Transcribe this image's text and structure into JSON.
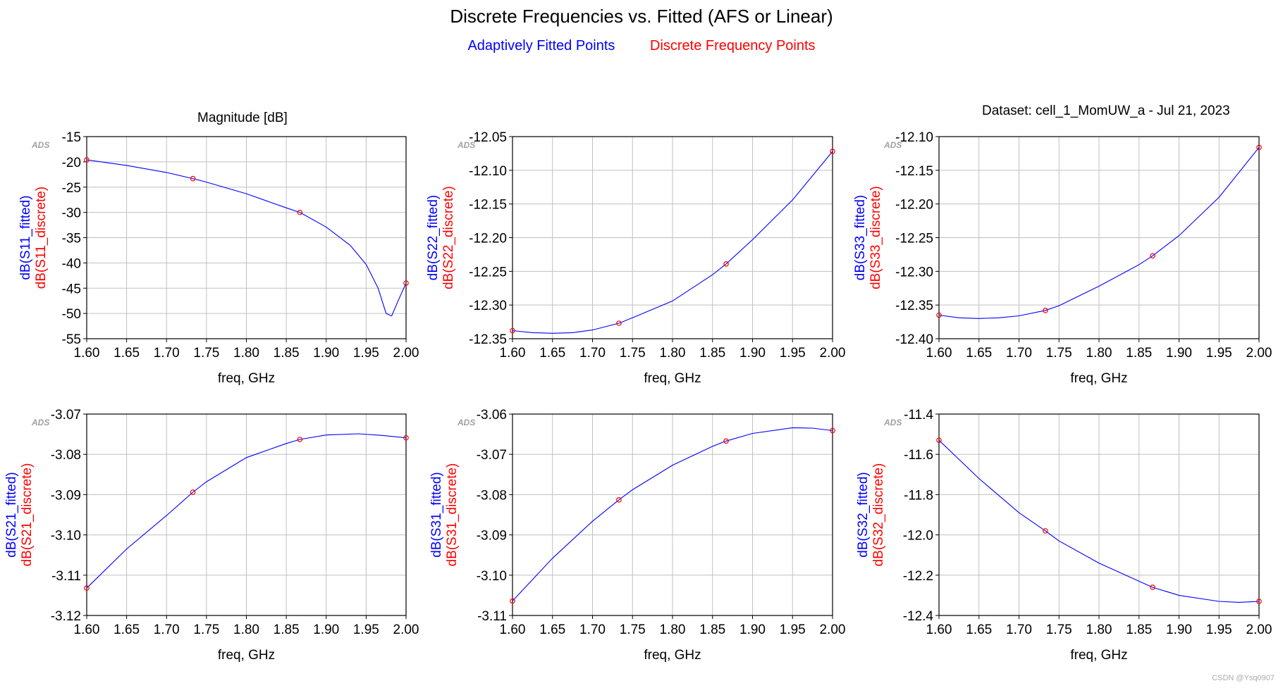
{
  "title": "Discrete Frequencies vs. Fitted (AFS or Linear)",
  "legend": {
    "fitted": "Adaptively Fitted Points",
    "discrete": "Discrete Frequency Points"
  },
  "colors": {
    "fitted": "#0000ff",
    "discrete": "#ff0000",
    "grid": "#c0c0c0",
    "ads_mark": "#a0a0a0"
  },
  "panel_title": "Magnitude [dB]",
  "dataset_label": "Dataset: cell_1_MomUW_a - Jul 21, 2023",
  "watermark": "CSDN @Ysq0907",
  "chart_data": [
    {
      "type": "line",
      "ylabel_fitted": "dB(S11_fitted)",
      "ylabel_discrete": "dB(S11_discrete)",
      "xlabel": "freq, GHz",
      "xlim": [
        1.6,
        2.0
      ],
      "xticks": [
        "1.60",
        "1.65",
        "1.70",
        "1.75",
        "1.80",
        "1.85",
        "1.90",
        "1.95",
        "2.00"
      ],
      "ylim": [
        -55,
        -15
      ],
      "yticks": [
        "-15",
        "-20",
        "-25",
        "-30",
        "-35",
        "-40",
        "-45",
        "-50",
        "-55"
      ],
      "fitted": {
        "x": [
          1.6,
          1.65,
          1.7,
          1.733,
          1.75,
          1.8,
          1.85,
          1.867,
          1.9,
          1.93,
          1.95,
          1.965,
          1.975,
          1.982,
          1.99,
          2.0
        ],
        "y": [
          -19.6,
          -20.7,
          -22.1,
          -23.3,
          -24.0,
          -26.3,
          -29.1,
          -30.0,
          -32.9,
          -36.5,
          -40.3,
          -45.0,
          -50.0,
          -50.5,
          -47.5,
          -44.0
        ]
      },
      "discrete": {
        "x": [
          1.6,
          1.733,
          1.867,
          2.0
        ],
        "y": [
          -19.6,
          -23.3,
          -30.0,
          -44.0
        ]
      },
      "grid": true,
      "ads_mark": "ADS"
    },
    {
      "type": "line",
      "ylabel_fitted": "dB(S22_fitted)",
      "ylabel_discrete": "dB(S22_discrete)",
      "xlabel": "freq, GHz",
      "xlim": [
        1.6,
        2.0
      ],
      "xticks": [
        "1.60",
        "1.65",
        "1.70",
        "1.75",
        "1.80",
        "1.85",
        "1.90",
        "1.95",
        "2.00"
      ],
      "ylim": [
        -12.35,
        -12.05
      ],
      "yticks": [
        "-12.05",
        "-12.10",
        "-12.15",
        "-12.20",
        "-12.25",
        "-12.30",
        "-12.35"
      ],
      "fitted": {
        "x": [
          1.6,
          1.625,
          1.65,
          1.675,
          1.7,
          1.733,
          1.75,
          1.8,
          1.85,
          1.867,
          1.9,
          1.95,
          2.0
        ],
        "y": [
          -12.338,
          -12.341,
          -12.342,
          -12.341,
          -12.337,
          -12.327,
          -12.319,
          -12.294,
          -12.255,
          -12.239,
          -12.203,
          -12.144,
          -12.072
        ]
      },
      "discrete": {
        "x": [
          1.6,
          1.733,
          1.867,
          2.0
        ],
        "y": [
          -12.338,
          -12.327,
          -12.239,
          -12.072
        ]
      },
      "grid": true,
      "ads_mark": "ADS"
    },
    {
      "type": "line",
      "ylabel_fitted": "dB(S33_fitted)",
      "ylabel_discrete": "dB(S33_discrete)",
      "xlabel": "freq, GHz",
      "xlim": [
        1.6,
        2.0
      ],
      "xticks": [
        "1.60",
        "1.65",
        "1.70",
        "1.75",
        "1.80",
        "1.85",
        "1.90",
        "1.95",
        "2.00"
      ],
      "ylim": [
        -12.4,
        -12.1
      ],
      "yticks": [
        "-12.10",
        "-12.15",
        "-12.20",
        "-12.25",
        "-12.30",
        "-12.35",
        "-12.40"
      ],
      "fitted": {
        "x": [
          1.6,
          1.625,
          1.65,
          1.675,
          1.7,
          1.733,
          1.75,
          1.8,
          1.85,
          1.867,
          1.9,
          1.95,
          2.0
        ],
        "y": [
          -12.365,
          -12.369,
          -12.37,
          -12.369,
          -12.366,
          -12.358,
          -12.351,
          -12.322,
          -12.29,
          -12.277,
          -12.247,
          -12.19,
          -12.116
        ]
      },
      "discrete": {
        "x": [
          1.6,
          1.733,
          1.867,
          2.0
        ],
        "y": [
          -12.365,
          -12.358,
          -12.277,
          -12.116
        ]
      },
      "grid": true,
      "ads_mark": "ADS"
    },
    {
      "type": "line",
      "ylabel_fitted": "dB(S21_fitted)",
      "ylabel_discrete": "dB(S21_discrete)",
      "xlabel": "freq, GHz",
      "xlim": [
        1.6,
        2.0
      ],
      "xticks": [
        "1.60",
        "1.65",
        "1.70",
        "1.75",
        "1.80",
        "1.85",
        "1.90",
        "1.95",
        "2.00"
      ],
      "ylim": [
        -3.12,
        -3.07
      ],
      "yticks": [
        "-3.07",
        "-3.08",
        "-3.09",
        "-3.10",
        "-3.11",
        "-3.12"
      ],
      "fitted": {
        "x": [
          1.6,
          1.65,
          1.7,
          1.733,
          1.75,
          1.8,
          1.85,
          1.867,
          1.9,
          1.94,
          1.97,
          2.0
        ],
        "y": [
          -3.1132,
          -3.1035,
          -3.0952,
          -3.0894,
          -3.0868,
          -3.0808,
          -3.0773,
          -3.0763,
          -3.0752,
          -3.0749,
          -3.0753,
          -3.0759
        ]
      },
      "discrete": {
        "x": [
          1.6,
          1.733,
          1.867,
          2.0
        ],
        "y": [
          -3.1132,
          -3.0894,
          -3.0763,
          -3.0759
        ]
      },
      "grid": true,
      "ads_mark": "ADS"
    },
    {
      "type": "line",
      "ylabel_fitted": "dB(S31_fitted)",
      "ylabel_discrete": "dB(S31_discrete)",
      "xlabel": "freq, GHz",
      "xlim": [
        1.6,
        2.0
      ],
      "xticks": [
        "1.60",
        "1.65",
        "1.70",
        "1.75",
        "1.80",
        "1.85",
        "1.90",
        "1.95",
        "2.00"
      ],
      "ylim": [
        -3.11,
        -3.06
      ],
      "yticks": [
        "-3.06",
        "-3.07",
        "-3.08",
        "-3.09",
        "-3.10",
        "-3.11"
      ],
      "fitted": {
        "x": [
          1.6,
          1.65,
          1.7,
          1.733,
          1.75,
          1.8,
          1.85,
          1.867,
          1.9,
          1.95,
          1.975,
          2.0
        ],
        "y": [
          -3.1064,
          -3.0958,
          -3.0866,
          -3.0813,
          -3.0788,
          -3.0727,
          -3.068,
          -3.0667,
          -3.0648,
          -3.0634,
          -3.0635,
          -3.0641
        ]
      },
      "discrete": {
        "x": [
          1.6,
          1.733,
          1.867,
          2.0
        ],
        "y": [
          -3.1064,
          -3.0813,
          -3.0667,
          -3.0641
        ]
      },
      "grid": true,
      "ads_mark": "ADS"
    },
    {
      "type": "line",
      "ylabel_fitted": "dB(S32_fitted)",
      "ylabel_discrete": "dB(S32_discrete)",
      "xlabel": "freq, GHz",
      "xlim": [
        1.6,
        2.0
      ],
      "xticks": [
        "1.60",
        "1.65",
        "1.70",
        "1.75",
        "1.80",
        "1.85",
        "1.90",
        "1.95",
        "2.00"
      ],
      "ylim": [
        -12.4,
        -11.4
      ],
      "yticks": [
        "-11.4",
        "-11.6",
        "-11.8",
        "-12.0",
        "-12.2",
        "-12.4"
      ],
      "fitted": {
        "x": [
          1.6,
          1.65,
          1.7,
          1.733,
          1.75,
          1.8,
          1.85,
          1.867,
          1.9,
          1.95,
          1.975,
          2.0
        ],
        "y": [
          -11.53,
          -11.72,
          -11.89,
          -11.98,
          -12.03,
          -12.14,
          -12.23,
          -12.26,
          -12.3,
          -12.33,
          -12.335,
          -12.33
        ]
      },
      "discrete": {
        "x": [
          1.6,
          1.733,
          1.867,
          2.0
        ],
        "y": [
          -11.53,
          -11.98,
          -12.26,
          -12.33
        ]
      },
      "grid": true,
      "ads_mark": "ADS"
    }
  ]
}
